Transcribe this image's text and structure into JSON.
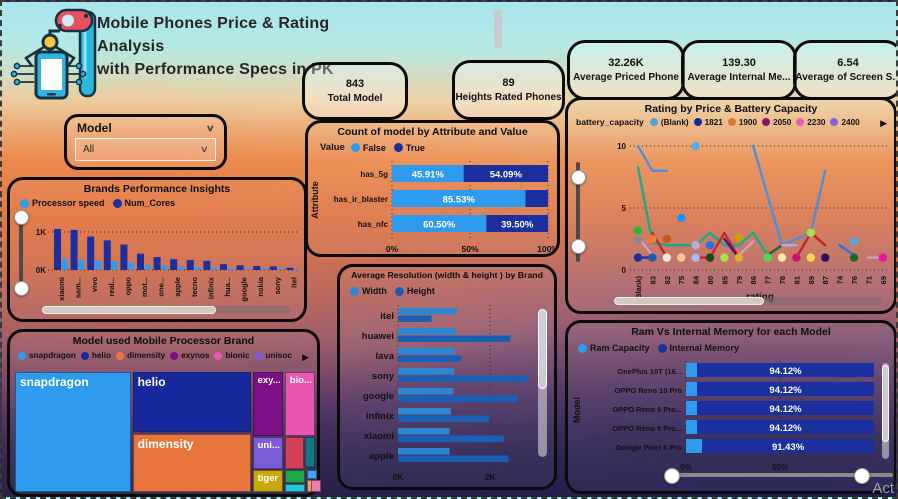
{
  "header": {
    "title_line1": "Mobile Phones Price & Rating Analysis",
    "title_line2": "with Performance Specs in PK"
  },
  "icons": {
    "chevron": "∨",
    "more_arrow": "▶"
  },
  "watermark": {
    "text": "Act"
  },
  "slicer": {
    "label": "Model",
    "value": "All"
  },
  "kpis": [
    {
      "value": "843",
      "label": "Total Model"
    },
    {
      "value": "89",
      "label": "Heights Rated Phones"
    },
    {
      "value": "32.26K",
      "label": "Average Priced Phone"
    },
    {
      "value": "139.30",
      "label": "Average Internal Me..."
    },
    {
      "value": "6.54",
      "label": "Average of Screen S..."
    }
  ],
  "chart_data": [
    {
      "name": "brands_performance",
      "type": "bar",
      "title": "Brands Performance Insights",
      "legend": [
        {
          "label": "Processor speed",
          "color": "#2e9bef"
        },
        {
          "label": "Num_Cores",
          "color": "#1b2f9e"
        }
      ],
      "categories": [
        "xiaomi",
        "sam...",
        "vivo",
        "real...",
        "oppo",
        "mot...",
        "one...",
        "apple",
        "tecno",
        "infinix",
        "hua...",
        "google",
        "nokia",
        "sony",
        "itel"
      ],
      "series": [
        {
          "name": "Num_Cores",
          "color": "#1b2f9e",
          "values": [
            1080,
            1055,
            880,
            780,
            670,
            430,
            340,
            285,
            260,
            240,
            155,
            125,
            105,
            95,
            60
          ]
        },
        {
          "name": "Processor speed",
          "color": "#2e9bef",
          "values": [
            295,
            270,
            250,
            225,
            205,
            130,
            120,
            100,
            85,
            70,
            50,
            40,
            42,
            30,
            22
          ]
        }
      ],
      "ylim": [
        0,
        1300
      ],
      "yticks": [
        "0K",
        "1K"
      ],
      "grid": "dotted"
    },
    {
      "name": "attribute_count",
      "type": "bar",
      "title": "Count of model by Attribute and Value",
      "legend_title": "Value",
      "legend": [
        {
          "label": "False",
          "color": "#2e9bef"
        },
        {
          "label": "True",
          "color": "#1b2f9e"
        }
      ],
      "ylabel": "Attribute",
      "categories": [
        "has_5g",
        "has_ir_blaster",
        "has_nfc"
      ],
      "series": [
        {
          "name": "False",
          "color": "#2e9bef",
          "values": [
            45.91,
            85.53,
            60.5
          ]
        },
        {
          "name": "True",
          "color": "#1b2f9e",
          "values": [
            54.09,
            14.47,
            39.5
          ]
        }
      ],
      "bar_labels": [
        [
          "45.91%",
          "54.09%"
        ],
        [
          "85.53%",
          ""
        ],
        [
          "60.50%",
          "39.50%"
        ]
      ],
      "xticks": [
        "0%",
        "50%",
        "100%"
      ],
      "xlim": [
        0,
        100
      ]
    },
    {
      "name": "avg_resolution",
      "type": "bar",
      "title": "Average Resolution (width & height ) by Brand",
      "legend": [
        {
          "label": "Width",
          "color": "#2e86d0"
        },
        {
          "label": "Height",
          "color": "#1a5fb4"
        }
      ],
      "categories": [
        "itel",
        "huawei",
        "lava",
        "sony",
        "google",
        "infinix",
        "xiaomi",
        "apple"
      ],
      "series": [
        {
          "name": "Width",
          "color": "#2e86d0",
          "values": [
            1280,
            1250,
            1230,
            1220,
            1200,
            1150,
            1120,
            1120
          ]
        },
        {
          "name": "Height",
          "color": "#1a5fb4",
          "values": [
            730,
            2440,
            1370,
            2840,
            2600,
            1990,
            2300,
            2400
          ]
        }
      ],
      "xlim": [
        0,
        3000
      ],
      "xticks": [
        {
          "label": "0K",
          "value": 0
        },
        {
          "label": "2K",
          "value": 2000
        }
      ]
    },
    {
      "name": "rating_by_price",
      "type": "line",
      "title": "Rating by Price & Battery Capacity",
      "legend_title": "battery_capacity",
      "legend": [
        {
          "label": "(Blank)",
          "color": "#4fa3e0"
        },
        {
          "label": "1821",
          "color": "#16289c"
        },
        {
          "label": "1900",
          "color": "#e8703a"
        },
        {
          "label": "2050",
          "color": "#8b1268"
        },
        {
          "label": "2230",
          "color": "#ec5bb8"
        },
        {
          "label": "2400",
          "color": "#8561d6"
        }
      ],
      "categories": [
        "(Blank)",
        "83",
        "82",
        "75",
        "84",
        "80",
        "85",
        "79",
        "86",
        "77",
        "78",
        "81",
        "89",
        "87",
        "74",
        "76",
        "71",
        "69"
      ],
      "xlabel": "rating",
      "ylim": [
        0,
        10
      ],
      "yticks": [
        0,
        5,
        10
      ],
      "lines": [
        {
          "color": "#4a90d9",
          "points": [
            [
              0,
              10
            ],
            [
              1,
              8
            ],
            [
              2,
              8
            ]
          ]
        },
        {
          "color": "#4a90d9",
          "points": [
            [
              8,
              10
            ],
            [
              10,
              2
            ],
            [
              12,
              3
            ],
            [
              13,
              8
            ]
          ]
        },
        {
          "color": "#1fa88a",
          "points": [
            [
              0,
              8.3
            ],
            [
              1,
              2.2
            ],
            [
              2,
              2
            ],
            [
              3,
              2
            ],
            [
              4,
              2
            ],
            [
              5,
              3
            ],
            [
              6,
              2
            ],
            [
              7,
              2
            ],
            [
              8,
              3
            ],
            [
              9,
              1.2
            ]
          ]
        },
        {
          "color": "#cc2222",
          "points": [
            [
              1,
              3
            ],
            [
              2,
              1
            ]
          ]
        },
        {
          "color": "#cc2222",
          "points": [
            [
              4,
              1
            ],
            [
              5,
              1
            ],
            [
              6,
              3
            ],
            [
              7,
              1
            ]
          ]
        },
        {
          "color": "#cc2222",
          "points": [
            [
              11,
              1
            ],
            [
              12,
              3
            ],
            [
              13,
              2
            ]
          ]
        },
        {
          "color": "#3a1a8c",
          "points": [
            [
              6,
              2.5
            ],
            [
              7,
              1
            ]
          ]
        },
        {
          "color": "#1a6b30",
          "points": [
            [
              9,
              1.2
            ],
            [
              10,
              2
            ]
          ]
        },
        {
          "color": "#c8a2c8",
          "points": [
            [
              0,
              2.6
            ],
            [
              1,
              1.2
            ]
          ]
        },
        {
          "color": "#c8a2c8",
          "points": [
            [
              7,
              1.2
            ],
            [
              8,
              2.3
            ]
          ]
        },
        {
          "color": "#c8a2c8",
          "points": [
            [
              10,
              2
            ],
            [
              11,
              2
            ]
          ]
        },
        {
          "color": "#c8a2c8",
          "points": [
            [
              16,
              1
            ],
            [
              17,
              1
            ]
          ]
        },
        {
          "color": "#2277dd",
          "points": [
            [
              14,
              2
            ],
            [
              15,
              1.2
            ]
          ]
        },
        {
          "color": "#1b2f9e",
          "points": [
            [
              0,
              1
            ],
            [
              1,
              1
            ]
          ]
        }
      ],
      "dots": [
        {
          "color": "#2eb82e",
          "x": 0,
          "y": 3.2
        },
        {
          "color": "#8a8a8a",
          "x": 0,
          "y": 2.4
        },
        {
          "color": "#1b2f9e",
          "x": 0,
          "y": 1
        },
        {
          "color": "#f08030",
          "x": 1,
          "y": 2.5
        },
        {
          "color": "#1b5fb0",
          "x": 1,
          "y": 1
        },
        {
          "color": "#c05a18",
          "x": 2,
          "y": 2.5
        },
        {
          "color": "#f0ece0",
          "x": 2,
          "y": 1
        },
        {
          "color": "#1e90ff",
          "x": 3,
          "y": 4.2
        },
        {
          "color": "#ffc890",
          "x": 3,
          "y": 1
        },
        {
          "color": "#5aa8e8",
          "x": 4,
          "y": 10
        },
        {
          "color": "#c0a8d8",
          "x": 4,
          "y": 2
        },
        {
          "color": "#a8b8f0",
          "x": 4,
          "y": 1
        },
        {
          "color": "#2277dd",
          "x": 5,
          "y": 2
        },
        {
          "color": "#174a1e",
          "x": 5,
          "y": 1
        },
        {
          "color": "#a8e04a",
          "x": 6,
          "y": 1
        },
        {
          "color": "#c8a008",
          "x": 7,
          "y": 2.6
        },
        {
          "color": "#e0b020",
          "x": 7,
          "y": 1
        },
        {
          "color": "#58d858",
          "x": 9,
          "y": 1
        },
        {
          "color": "#ffe8a0",
          "x": 10,
          "y": 1
        },
        {
          "color": "#cc1177",
          "x": 11,
          "y": 1
        },
        {
          "color": "#a8e04a",
          "x": 12,
          "y": 3
        },
        {
          "color": "#ffd84a",
          "x": 12,
          "y": 1
        },
        {
          "color": "#2d1060",
          "x": 13,
          "y": 1
        },
        {
          "color": "#5aa8e8",
          "x": 15,
          "y": 2.3
        },
        {
          "color": "#176b2e",
          "x": 15,
          "y": 1
        },
        {
          "color": "#ee1199",
          "x": 17,
          "y": 1
        }
      ]
    },
    {
      "name": "ram_vs_internal",
      "type": "bar",
      "title": "Ram Vs Internal Memory for each Model",
      "legend": [
        {
          "label": "Ram Capacity",
          "color": "#2e9bef"
        },
        {
          "label": "Internal Memory",
          "color": "#1b2f9e"
        }
      ],
      "ylabel": "Model",
      "categories": [
        "OnePlus 10T (16...",
        "OPPO Reno 10 Pro",
        "OPPO Reno 9 Pro...",
        "OPPO Reno 9 Pro...",
        "Google Pixel 6 Pro"
      ],
      "series": [
        {
          "name": "Ram Capacity",
          "color": "#2e9bef",
          "values": [
            5.88,
            5.88,
            5.88,
            5.88,
            8.57
          ]
        },
        {
          "name": "Internal Memory",
          "color": "#1b2f9e",
          "values": [
            94.12,
            94.12,
            94.12,
            94.12,
            91.43
          ]
        }
      ],
      "bar_labels": [
        "94.12%",
        "94.12%",
        "94.12%",
        "94.12%",
        "91.43%"
      ],
      "xticks": [
        "0%",
        "50%"
      ],
      "xlim": [
        0,
        100
      ]
    },
    {
      "name": "processor_treemap",
      "type": "treemap",
      "title": "Model used Mobile Processor Brand",
      "legend": [
        {
          "label": "snapdragon",
          "color": "#2e9bef"
        },
        {
          "label": "helio",
          "color": "#16289c"
        },
        {
          "label": "dimensity",
          "color": "#e8763c"
        },
        {
          "label": "exynos",
          "color": "#7b0f86"
        },
        {
          "label": "bionic",
          "color": "#e857b0"
        },
        {
          "label": "unisoc",
          "color": "#7c5cd6"
        }
      ],
      "tiles": [
        {
          "label": "snapdragon",
          "color": "#2e9bef",
          "x": 0,
          "y": 0,
          "w": 38.6,
          "h": 100,
          "fs": 12
        },
        {
          "label": "helio",
          "color": "#16289c",
          "x": 39.2,
          "y": 0,
          "w": 39.4,
          "h": 50.4,
          "fs": 12
        },
        {
          "label": "dimensity",
          "color": "#e8763c",
          "x": 39.2,
          "y": 51.4,
          "w": 39.4,
          "h": 48.6,
          "fs": 12
        },
        {
          "label": "exy...",
          "color": "#7b0f86",
          "x": 79.2,
          "y": 0,
          "w": 10.2,
          "h": 53,
          "fs": 9.5
        },
        {
          "label": "bio...",
          "color": "#e857b0",
          "x": 89.9,
          "y": 0,
          "w": 10.1,
          "h": 53,
          "fs": 9.5
        },
        {
          "label": "uni...",
          "color": "#7c5cd6",
          "x": 79.2,
          "y": 53.8,
          "w": 10.2,
          "h": 27.4,
          "fs": 9.5
        },
        {
          "label": "tiger",
          "color": "#c8a80a",
          "x": 79.2,
          "y": 81.9,
          "w": 10.2,
          "h": 18.1,
          "fs": 9.5
        },
        {
          "label": "",
          "color": "#d84058",
          "x": 89.9,
          "y": 53.8,
          "w": 6.3,
          "h": 27.4,
          "fs": 8
        },
        {
          "label": "",
          "color": "#107a80",
          "x": 96.7,
          "y": 53.8,
          "w": 3.3,
          "h": 25.6,
          "fs": 8
        },
        {
          "label": "",
          "color": "#1fa84a",
          "x": 89.9,
          "y": 81.9,
          "w": 6.9,
          "h": 10.6,
          "fs": 8
        },
        {
          "label": "",
          "color": "#26c6da",
          "x": 89.9,
          "y": 93.2,
          "w": 6.9,
          "h": 6.8,
          "fs": 8
        },
        {
          "label": "",
          "color": "#42a5f5",
          "x": 97.3,
          "y": 81.9,
          "w": 2.7,
          "h": 7.3,
          "fs": 8
        },
        {
          "label": "",
          "color": "#f0a050",
          "x": 97.3,
          "y": 89.9,
          "w": 1.2,
          "h": 10.1,
          "fs": 8
        },
        {
          "label": "",
          "color": "#ec7bb0",
          "x": 98.7,
          "y": 89.9,
          "w": 1.3,
          "h": 10.1,
          "fs": 8
        }
      ]
    }
  ]
}
